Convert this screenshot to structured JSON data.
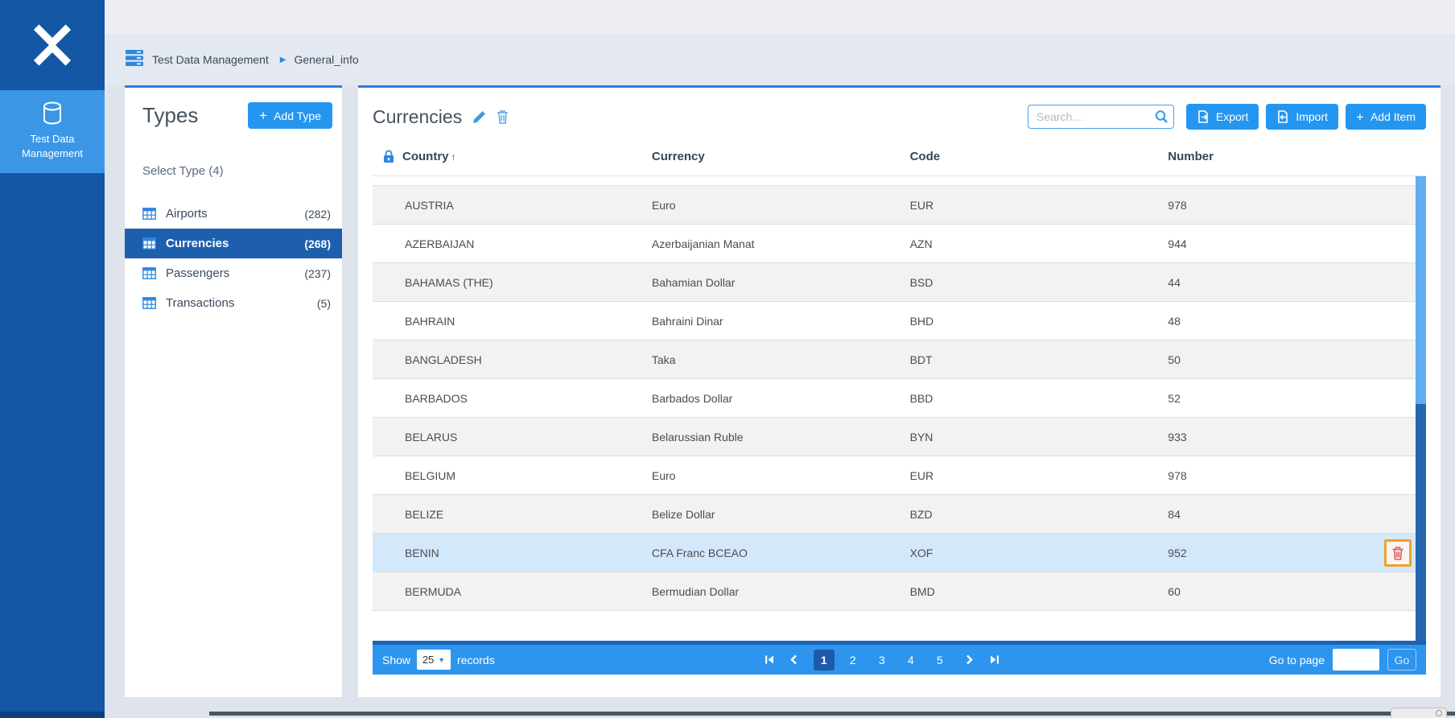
{
  "sidebar": {
    "app_item": "Test Data Management"
  },
  "breadcrumb": {
    "root": "Test Data Management",
    "current": "General_info"
  },
  "icons": {
    "plus": "+",
    "breadcrumb_separator": "▶",
    "select_caret": "▼"
  },
  "types_panel": {
    "title": "Types",
    "add_type_label": "Add Type",
    "select_label": "Select Type (4)",
    "items": [
      {
        "label": "Airports",
        "count": "(282)",
        "active": false
      },
      {
        "label": "Currencies",
        "count": "(268)",
        "active": true
      },
      {
        "label": "Passengers",
        "count": "(237)",
        "active": false
      },
      {
        "label": "Transactions",
        "count": "(5)",
        "active": false
      }
    ]
  },
  "main": {
    "title": "Currencies",
    "search_placeholder": "Search...",
    "buttons": {
      "export": "Export",
      "import": "Import",
      "add_item": "Add Item"
    },
    "table": {
      "columns": [
        "Country",
        "Currency",
        "Code",
        "Number"
      ],
      "sort": {
        "column": "Country",
        "direction": "asc",
        "arrow": "↑"
      },
      "rows": [
        {
          "country": "AUSTRIA",
          "currency": "Euro",
          "code": "EUR",
          "number": "978",
          "highlighted": false
        },
        {
          "country": "AZERBAIJAN",
          "currency": "Azerbaijanian Manat",
          "code": "AZN",
          "number": "944",
          "highlighted": false
        },
        {
          "country": "BAHAMAS (THE)",
          "currency": "Bahamian Dollar",
          "code": "BSD",
          "number": "44",
          "highlighted": false
        },
        {
          "country": "BAHRAIN",
          "currency": "Bahraini Dinar",
          "code": "BHD",
          "number": "48",
          "highlighted": false
        },
        {
          "country": "BANGLADESH",
          "currency": "Taka",
          "code": "BDT",
          "number": "50",
          "highlighted": false
        },
        {
          "country": "BARBADOS",
          "currency": "Barbados Dollar",
          "code": "BBD",
          "number": "52",
          "highlighted": false
        },
        {
          "country": "BELARUS",
          "currency": "Belarussian Ruble",
          "code": "BYN",
          "number": "933",
          "highlighted": false
        },
        {
          "country": "BELGIUM",
          "currency": "Euro",
          "code": "EUR",
          "number": "978",
          "highlighted": false
        },
        {
          "country": "BELIZE",
          "currency": "Belize Dollar",
          "code": "BZD",
          "number": "84",
          "highlighted": false
        },
        {
          "country": "BENIN",
          "currency": "CFA Franc BCEAO",
          "code": "XOF",
          "number": "952",
          "highlighted": true
        },
        {
          "country": "BERMUDA",
          "currency": "Bermudian Dollar",
          "code": "BMD",
          "number": "60",
          "highlighted": false
        }
      ]
    },
    "footer": {
      "show_label": "Show",
      "page_size": "25",
      "records_label": "records",
      "pages": [
        "1",
        "2",
        "3",
        "4",
        "5"
      ],
      "active_page": "1",
      "goto_label": "Go to page",
      "go_label": "Go"
    }
  },
  "colors": {
    "sidebar": "#1357a5",
    "sidebar_active": "#3b97e6",
    "accent_blue": "#2596f0",
    "selected_item": "#1e5fad",
    "footer_bar": "#2e95ee",
    "row_highlight": "#d4e8fb",
    "delete_focus_border": "#f0a22e",
    "scrollbar_light": "#5fadf2",
    "scrollbar_dark": "#2665b0"
  }
}
